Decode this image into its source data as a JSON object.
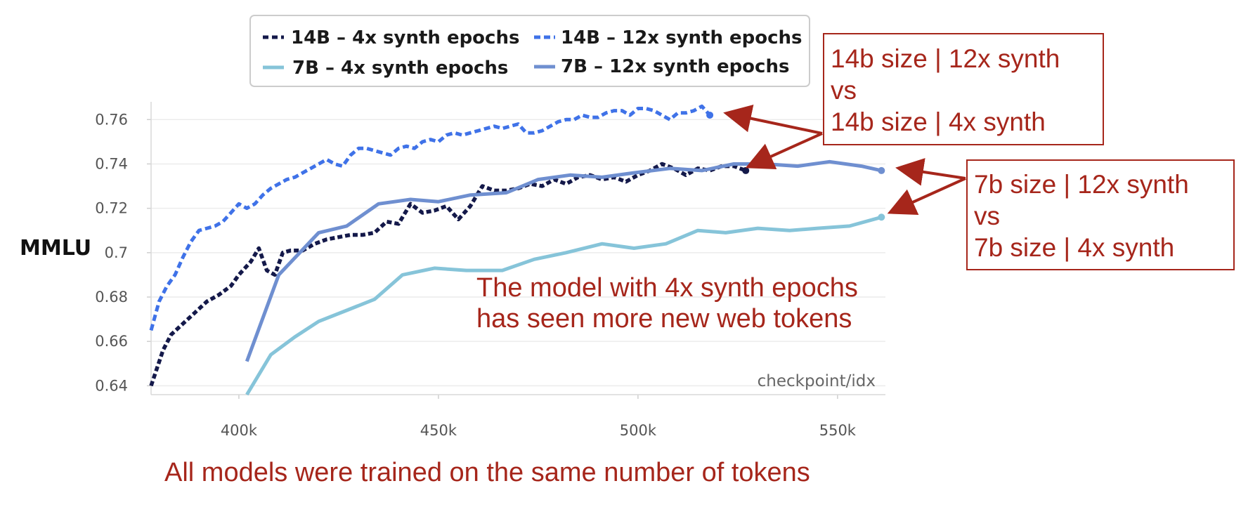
{
  "chart_data": {
    "type": "line",
    "ylabel": "MMLU",
    "xlabel": "checkpoint/idx",
    "xlim": [
      378000,
      562000
    ],
    "ylim": [
      0.636,
      0.768
    ],
    "xticks": [
      400000,
      450000,
      500000,
      550000
    ],
    "xtick_labels": [
      "400k",
      "450k",
      "500k",
      "550k"
    ],
    "yticks": [
      0.64,
      0.66,
      0.68,
      0.7,
      0.72,
      0.74,
      0.76
    ],
    "ytick_labels": [
      "0.64",
      "0.66",
      "0.68",
      "0.7",
      "0.72",
      "0.74",
      "0.76"
    ],
    "grid": true,
    "legend_position": "top",
    "series": [
      {
        "name": "14B – 4x synth epochs",
        "color": "#14194a",
        "dash": "dotted",
        "x": [
          378000,
          381000,
          383000,
          386000,
          389000,
          392000,
          395000,
          398000,
          400000,
          403000,
          405000,
          407000,
          409000,
          411000,
          413000,
          416000,
          419000,
          422000,
          425000,
          428000,
          431000,
          434000,
          437000,
          440000,
          443000,
          446000,
          449000,
          452000,
          455000,
          458000,
          461000,
          464000,
          467000,
          470000,
          473000,
          476000,
          479000,
          482000,
          485000,
          488000,
          491000,
          494000,
          497000,
          500000,
          503000,
          506000,
          509000,
          512000,
          515000,
          518000,
          521000,
          524000,
          527000
        ],
        "y": [
          0.64,
          0.656,
          0.663,
          0.668,
          0.673,
          0.678,
          0.681,
          0.685,
          0.69,
          0.696,
          0.702,
          0.692,
          0.69,
          0.7,
          0.701,
          0.701,
          0.704,
          0.706,
          0.707,
          0.708,
          0.708,
          0.709,
          0.714,
          0.713,
          0.722,
          0.718,
          0.719,
          0.721,
          0.715,
          0.721,
          0.73,
          0.728,
          0.728,
          0.729,
          0.731,
          0.73,
          0.733,
          0.731,
          0.734,
          0.735,
          0.733,
          0.734,
          0.732,
          0.735,
          0.737,
          0.74,
          0.738,
          0.735,
          0.738,
          0.737,
          0.739,
          0.739,
          0.737
        ]
      },
      {
        "name": "14B – 12x synth epochs",
        "color": "#3f72e8",
        "dash": "dashed",
        "x": [
          378000,
          380000,
          382000,
          384000,
          386000,
          388000,
          390000,
          392000,
          394000,
          396000,
          398000,
          400000,
          402000,
          404000,
          406000,
          408000,
          410000,
          412000,
          414000,
          416000,
          418000,
          420000,
          422000,
          424000,
          426000,
          428000,
          430000,
          432000,
          434000,
          436000,
          438000,
          440000,
          442000,
          444000,
          446000,
          448000,
          450000,
          452000,
          454000,
          456000,
          458000,
          460000,
          462000,
          464000,
          466000,
          468000,
          470000,
          472000,
          474000,
          476000,
          478000,
          480000,
          482000,
          484000,
          486000,
          488000,
          490000,
          492000,
          494000,
          496000,
          498000,
          500000,
          502000,
          504000,
          506000,
          508000,
          510000,
          512000,
          514000,
          516000,
          518000
        ],
        "y": [
          0.665,
          0.678,
          0.685,
          0.69,
          0.698,
          0.705,
          0.71,
          0.711,
          0.712,
          0.714,
          0.718,
          0.722,
          0.72,
          0.722,
          0.726,
          0.729,
          0.731,
          0.733,
          0.734,
          0.736,
          0.738,
          0.74,
          0.742,
          0.74,
          0.739,
          0.744,
          0.747,
          0.747,
          0.746,
          0.745,
          0.744,
          0.747,
          0.748,
          0.747,
          0.75,
          0.751,
          0.75,
          0.753,
          0.754,
          0.753,
          0.754,
          0.755,
          0.756,
          0.757,
          0.756,
          0.757,
          0.758,
          0.754,
          0.754,
          0.755,
          0.757,
          0.759,
          0.76,
          0.76,
          0.762,
          0.761,
          0.761,
          0.763,
          0.764,
          0.764,
          0.762,
          0.765,
          0.765,
          0.764,
          0.762,
          0.76,
          0.763,
          0.763,
          0.764,
          0.766,
          0.762
        ]
      },
      {
        "name": "7B – 4x synth epochs",
        "color": "#86c4d9",
        "dash": "solid",
        "x": [
          402000,
          408000,
          414000,
          420000,
          427000,
          434000,
          441000,
          449000,
          457000,
          466000,
          474000,
          482000,
          491000,
          499000,
          507000,
          515000,
          522000,
          530000,
          538000,
          545000,
          553000,
          561000
        ],
        "y": [
          0.636,
          0.654,
          0.662,
          0.669,
          0.674,
          0.679,
          0.69,
          0.693,
          0.692,
          0.692,
          0.697,
          0.7,
          0.704,
          0.702,
          0.704,
          0.71,
          0.709,
          0.711,
          0.71,
          0.711,
          0.712,
          0.716
        ]
      },
      {
        "name": "7B – 12x synth epochs",
        "color": "#6f8fd0",
        "dash": "solid",
        "x": [
          402000,
          410000,
          420000,
          427000,
          435000,
          443000,
          450000,
          458000,
          467000,
          475000,
          483000,
          491000,
          499000,
          508000,
          516000,
          524000,
          532000,
          540000,
          548000,
          556000,
          561000
        ],
        "y": [
          0.651,
          0.69,
          0.709,
          0.712,
          0.722,
          0.724,
          0.723,
          0.726,
          0.727,
          0.733,
          0.735,
          0.734,
          0.736,
          0.738,
          0.737,
          0.74,
          0.74,
          0.739,
          0.741,
          0.739,
          0.737
        ]
      }
    ]
  },
  "annotations": {
    "box1_lines": [
      "14b size | 12x synth",
      "vs",
      "14b size | 4x synth"
    ],
    "box2_lines": [
      "7b size | 12x synth",
      "vs",
      "7b size | 4x synth"
    ],
    "middle_lines": [
      "The model with 4x synth epochs",
      "has seen more new web tokens"
    ],
    "bottom": "All models were trained on the same number of tokens",
    "color": "#a6261b"
  }
}
